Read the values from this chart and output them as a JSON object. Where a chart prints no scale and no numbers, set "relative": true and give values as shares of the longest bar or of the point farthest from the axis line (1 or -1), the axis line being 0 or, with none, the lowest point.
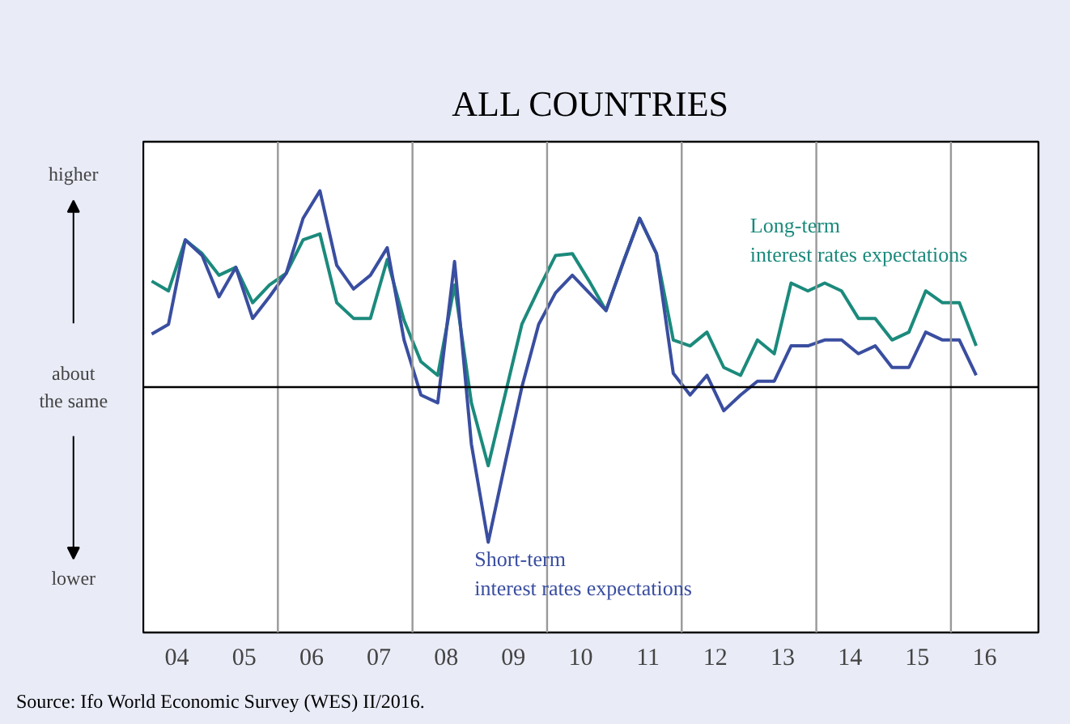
{
  "chart_data": {
    "type": "line",
    "title": "ALL COUNTRIES",
    "relative": true,
    "x": [
      3.625,
      3.875,
      4.125,
      4.375,
      4.625,
      4.875,
      5.125,
      5.375,
      5.625,
      5.875,
      6.125,
      6.375,
      6.625,
      6.875,
      7.125,
      7.375,
      7.625,
      7.875,
      8.125,
      8.375,
      8.625,
      8.875,
      9.125,
      9.375,
      9.625,
      9.875,
      10.125,
      10.375,
      10.625,
      10.875,
      11.125,
      11.375,
      11.625,
      11.875,
      12.125,
      12.375,
      12.625,
      12.875,
      13.125,
      13.375,
      13.625,
      13.875,
      14.125,
      14.375,
      14.625,
      14.875,
      15.125,
      15.375,
      15.625,
      15.875
    ],
    "xlim": [
      3.5,
      16.8
    ],
    "xticks": [
      {
        "value": 4,
        "label": "04"
      },
      {
        "value": 5,
        "label": "05"
      },
      {
        "value": 6,
        "label": "06"
      },
      {
        "value": 7,
        "label": "07"
      },
      {
        "value": 8,
        "label": "08"
      },
      {
        "value": 9,
        "label": "09"
      },
      10,
      11,
      12,
      13,
      14,
      15,
      16
    ],
    "series": [
      {
        "name": "Long-term\ninterest rates expectations",
        "color": "#1b8a7c",
        "values": [
          0.54,
          0.49,
          0.75,
          0.68,
          0.57,
          0.61,
          0.43,
          0.52,
          0.58,
          0.75,
          0.78,
          0.43,
          0.35,
          0.35,
          0.65,
          0.34,
          0.13,
          0.06,
          0.52,
          -0.08,
          -0.4,
          -0.04,
          0.32,
          0.5,
          0.67,
          0.68,
          0.54,
          0.39,
          0.63,
          0.86,
          0.68,
          0.24,
          0.21,
          0.28,
          0.1,
          0.06,
          0.24,
          0.17,
          0.53,
          0.49,
          0.53,
          0.49,
          0.35,
          0.35,
          0.24,
          0.28,
          0.49,
          0.43,
          0.43,
          0.21
        ]
      },
      {
        "name": "Short-term\ninterest rates expectations",
        "color": "#3a4ea0",
        "values": [
          0.27,
          0.32,
          0.75,
          0.67,
          0.46,
          0.61,
          0.35,
          0.46,
          0.58,
          0.86,
          1.0,
          0.62,
          0.5,
          0.57,
          0.71,
          0.24,
          -0.04,
          -0.08,
          0.64,
          -0.29,
          -0.79,
          -0.39,
          0.0,
          0.32,
          0.48,
          0.57,
          0.48,
          0.39,
          0.63,
          0.86,
          0.68,
          0.07,
          -0.04,
          0.06,
          -0.12,
          -0.04,
          0.03,
          0.03,
          0.21,
          0.21,
          0.24,
          0.24,
          0.17,
          0.21,
          0.1,
          0.1,
          0.28,
          0.24,
          0.24,
          0.06
        ]
      }
    ],
    "ref_lines": [
      {
        "axis": "x",
        "value": 5.5,
        "color": "#999999"
      },
      {
        "axis": "x",
        "value": 7.5,
        "color": "#999999"
      },
      {
        "axis": "x",
        "value": 9.5,
        "color": "#999999"
      },
      {
        "axis": "x",
        "value": 11.5,
        "color": "#999999"
      },
      {
        "axis": "x",
        "value": 13.5,
        "color": "#999999"
      },
      {
        "axis": "x",
        "value": 15.5,
        "color": "#999999"
      }
    ],
    "annotations": [
      "higher",
      "about\nthe same",
      "lower",
      "Source: Ifo World Economic Survey (WES) II/2016."
    ],
    "line_style": "solid"
  }
}
